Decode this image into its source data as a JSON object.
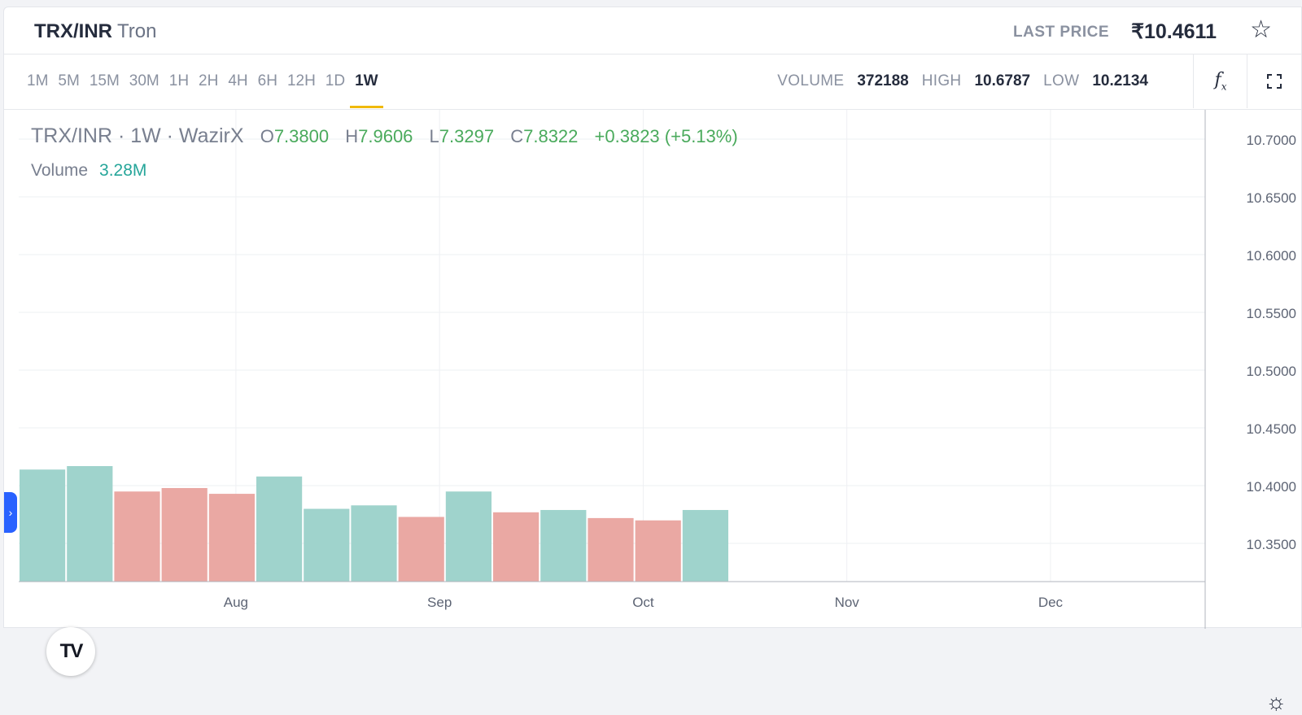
{
  "header": {
    "pair": "TRX/INR",
    "name": "Tron",
    "last_price_label": "LAST PRICE",
    "last_price": "₹10.4611",
    "favorite_icon": "star-icon"
  },
  "toolbar": {
    "intervals": [
      "1M",
      "5M",
      "15M",
      "30M",
      "1H",
      "2H",
      "4H",
      "6H",
      "12H",
      "1D",
      "1W"
    ],
    "active_interval": "1W",
    "volume_label": "VOLUME",
    "volume": "372188",
    "high_label": "HIGH",
    "high": "10.6787",
    "low_label": "LOW",
    "low": "10.2134",
    "indicators_icon": "fx-icon",
    "fullscreen_icon": "fullscreen-icon"
  },
  "chart_legend": {
    "title": "TRX/INR · 1W · WazirX",
    "o_label": "O",
    "o": "7.3800",
    "h_label": "H",
    "h": "7.9606",
    "l_label": "L",
    "l": "7.3297",
    "c_label": "C",
    "c": "7.8322",
    "change": "+0.3823 (+5.13%)",
    "volume_label": "Volume",
    "volume": "3.28M",
    "up_color": "#4aaa5c"
  },
  "chart_data": {
    "type": "bar",
    "series": [
      {
        "name": "Volume",
        "values": [
          0.97,
          1.0,
          0.78,
          0.81,
          0.76,
          0.91,
          0.63,
          0.66,
          0.56,
          0.78,
          0.6,
          0.62,
          0.55,
          0.53,
          0.62
        ],
        "direction": [
          "up",
          "up",
          "down",
          "down",
          "down",
          "up",
          "up",
          "up",
          "down",
          "up",
          "down",
          "up",
          "down",
          "down",
          "up"
        ]
      }
    ],
    "volume_unit": "relative to max bar",
    "price_axis_ticks": [
      "10.7000",
      "10.6500",
      "10.6000",
      "10.5500",
      "10.5000",
      "10.4500",
      "10.4000",
      "10.3500"
    ],
    "price_axis_range": [
      10.32,
      10.71
    ],
    "time_axis_ticks": [
      "Aug",
      "Sep",
      "Oct",
      "Nov",
      "Dec"
    ],
    "bars_before_first_tick": 4.5,
    "bars_per_month": 4.3,
    "up_color": "#9fd3cc",
    "down_color": "#eaa8a3",
    "grid": true
  }
}
